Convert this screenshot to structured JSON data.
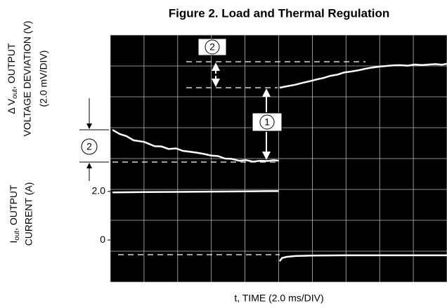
{
  "chart_data": {
    "type": "line",
    "title": "Figure 2. Load and Thermal Regulation",
    "xlabel": "t, TIME (2.0 ms/DIV)",
    "ylabel_lines": [
      [
        "Δ V",
        "out",
        ", OUTPUT"
      ],
      "VOLTAGE DEVIATION (V)",
      "(2.0 mV/DIV)"
    ],
    "y2label_lines": [
      [
        "I",
        "out",
        ", OUTPUT"
      ],
      "CURRENT (A)"
    ],
    "xlim": [
      0,
      20
    ],
    "xticks": [
      0,
      2,
      4,
      6,
      8,
      10,
      12,
      14,
      16,
      18,
      20
    ],
    "ylim": [
      0,
      16
    ],
    "yticks": [
      0,
      2,
      4,
      6,
      8,
      10,
      12,
      14,
      16
    ],
    "y2lim": [
      -1.73,
      8.43
    ],
    "y2ticks": [
      {
        "value": 2,
        "label": "2.0"
      },
      0
    ],
    "grid": true,
    "background": "#000000",
    "series": [
      {
        "color": "#ffffff",
        "x": [
          0.13,
          0.54,
          0.96,
          1.38,
          2.0,
          2.63,
          3.05,
          3.47,
          3.9,
          4.3,
          4.72,
          5.14,
          5.55,
          5.97,
          6.4,
          6.81,
          7.2,
          7.64,
          8.05,
          8.48,
          8.9,
          9.31,
          9.7,
          10.0,
          10.03,
          10.06,
          10.56,
          10.98,
          11.4,
          11.8,
          12.23,
          12.65,
          13.07,
          13.5,
          13.9,
          14.32,
          14.74,
          15.15,
          15.57,
          16.0,
          16.41,
          16.83,
          17.24,
          17.66,
          18.08,
          18.5,
          18.91,
          19.33,
          19.7,
          20.0
        ],
        "values": [
          9.86,
          9.6,
          9.45,
          9.18,
          9.08,
          8.8,
          8.78,
          8.62,
          8.66,
          8.5,
          8.44,
          8.38,
          8.3,
          8.2,
          8.16,
          8.0,
          7.98,
          7.86,
          7.9,
          7.8,
          7.86,
          7.84,
          7.9,
          7.86,
          null,
          12.59,
          12.7,
          12.78,
          12.9,
          13.0,
          13.12,
          13.22,
          13.36,
          13.44,
          13.58,
          13.64,
          13.72,
          13.82,
          13.9,
          13.96,
          14.0,
          14.04,
          14.05,
          14.02,
          14.09,
          14.06,
          14.09,
          14.12,
          14.08,
          14.14
        ]
      },
      {
        "color": "#ffffff",
        "axis": "y2",
        "x": [
          0.13,
          2.0,
          4.0,
          6.0,
          8.0,
          9.5,
          10.0,
          10.03,
          10.06,
          10.2,
          10.5,
          11.0,
          12.0,
          14.0,
          16.0,
          18.0,
          20.0
        ],
        "values": [
          1.96,
          1.97,
          1.98,
          1.99,
          2.0,
          2.01,
          2.01,
          null,
          -0.87,
          -0.74,
          -0.69,
          -0.66,
          -0.64,
          -0.63,
          -0.63,
          -0.63,
          -0.63
        ]
      }
    ],
    "annotations": [
      "2",
      "1",
      "2"
    ]
  }
}
